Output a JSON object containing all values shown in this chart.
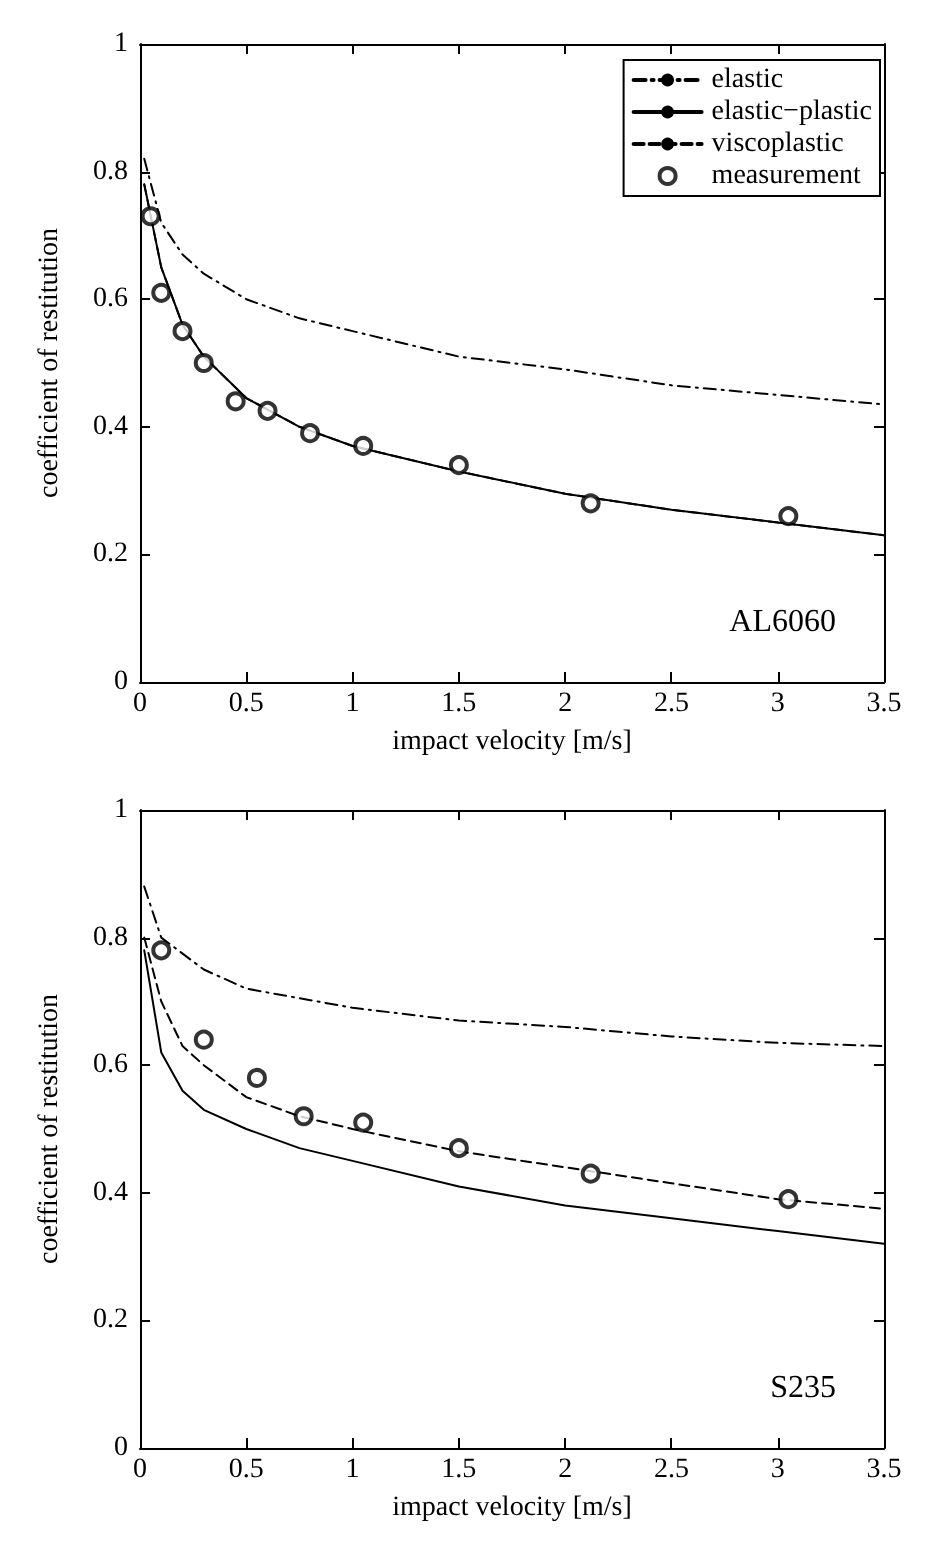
{
  "chart_data": [
    {
      "type": "line",
      "xlabel": "impact velocity [m/s]",
      "ylabel": "coefficient of restitution",
      "annotations": [
        "AL6060"
      ],
      "xlim": [
        0,
        3.5
      ],
      "xticks": [
        0,
        0.5,
        1,
        1.5,
        2,
        2.5,
        3,
        3.5
      ],
      "ylim": [
        0,
        1
      ],
      "yticks": [
        0,
        0.2,
        0.4,
        0.6,
        0.8,
        1
      ],
      "grid": false,
      "legend": "top right",
      "series": [
        {
          "name": "elastic",
          "color": "#000000",
          "line_style": "dashdot",
          "marker": "none",
          "x": [
            0.02,
            0.1,
            0.2,
            0.3,
            0.5,
            0.75,
            1,
            1.5,
            2,
            2.5,
            3,
            3.5
          ],
          "values": [
            0.82,
            0.72,
            0.67,
            0.64,
            0.6,
            0.57,
            0.55,
            0.51,
            0.49,
            0.465,
            0.45,
            0.435
          ]
        },
        {
          "name": "elastic−plastic",
          "color": "#000000",
          "line_style": "solid",
          "marker": "none",
          "x": [
            0.02,
            0.1,
            0.2,
            0.3,
            0.5,
            0.75,
            1,
            1.5,
            2,
            2.5,
            3,
            3.5
          ],
          "values": [
            0.78,
            0.65,
            0.56,
            0.51,
            0.445,
            0.4,
            0.37,
            0.33,
            0.295,
            0.27,
            0.25,
            0.23
          ]
        },
        {
          "name": "viscoplastic",
          "color": "#000000",
          "line_style": "dashed",
          "marker": "none",
          "x": [
            0.02,
            0.1,
            0.2,
            0.3,
            0.5,
            0.75,
            1,
            1.5,
            2,
            2.5,
            3,
            3.5
          ],
          "values": [
            0.78,
            0.65,
            0.56,
            0.51,
            0.445,
            0.4,
            0.37,
            0.33,
            0.295,
            0.27,
            0.25,
            0.23
          ]
        },
        {
          "name": "measurement",
          "type": "scatter",
          "color": "#000000",
          "marker": "circle",
          "x": [
            0.05,
            0.1,
            0.2,
            0.3,
            0.45,
            0.6,
            0.8,
            1.05,
            1.5,
            2.12,
            3.05
          ],
          "values": [
            0.73,
            0.61,
            0.55,
            0.5,
            0.44,
            0.425,
            0.39,
            0.37,
            0.34,
            0.28,
            0.26
          ]
        }
      ]
    },
    {
      "type": "line",
      "xlabel": "impact velocity [m/s]",
      "ylabel": "coefficient of restitution",
      "annotations": [
        "S235"
      ],
      "xlim": [
        0,
        3.5
      ],
      "xticks": [
        0,
        0.5,
        1,
        1.5,
        2,
        2.5,
        3,
        3.5
      ],
      "ylim": [
        0,
        1
      ],
      "yticks": [
        0,
        0.2,
        0.4,
        0.6,
        0.8,
        1
      ],
      "grid": false,
      "series": [
        {
          "color": "#000000",
          "line_style": "dashdot",
          "marker": "none",
          "x": [
            0.02,
            0.1,
            0.3,
            0.5,
            1,
            1.5,
            2,
            2.5,
            3,
            3.5
          ],
          "values": [
            0.88,
            0.8,
            0.75,
            0.72,
            0.69,
            0.67,
            0.66,
            0.645,
            0.635,
            0.63
          ]
        },
        {
          "color": "#000000",
          "line_style": "solid",
          "marker": "none",
          "x": [
            0.02,
            0.1,
            0.2,
            0.3,
            0.5,
            0.75,
            1,
            1.5,
            2,
            2.5,
            3,
            3.5
          ],
          "values": [
            0.78,
            0.62,
            0.56,
            0.53,
            0.5,
            0.47,
            0.45,
            0.41,
            0.38,
            0.36,
            0.34,
            0.32
          ]
        },
        {
          "color": "#000000",
          "line_style": "dashed",
          "marker": "none",
          "x": [
            0.02,
            0.1,
            0.2,
            0.3,
            0.5,
            0.75,
            1,
            1.5,
            2,
            2.5,
            3,
            3.5
          ],
          "values": [
            0.8,
            0.7,
            0.63,
            0.6,
            0.55,
            0.52,
            0.5,
            0.465,
            0.44,
            0.415,
            0.39,
            0.375
          ]
        },
        {
          "type": "scatter",
          "color": "#000000",
          "marker": "circle",
          "x": [
            0.1,
            0.3,
            0.55,
            0.77,
            1.05,
            1.5,
            2.12,
            3.05
          ],
          "values": [
            0.78,
            0.64,
            0.58,
            0.52,
            0.51,
            0.47,
            0.43,
            0.39
          ]
        }
      ]
    }
  ]
}
